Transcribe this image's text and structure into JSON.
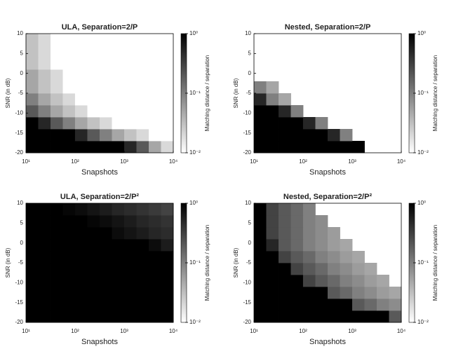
{
  "chart_data": [
    {
      "type": "heatmap",
      "title": "ULA, Separation=2/P",
      "xlabel": "Snapshots",
      "ylabel": "SNR (in dB)",
      "colorbar_label": "Matching distance / separation",
      "x": [
        13.3,
        23.7,
        42.2,
        75,
        133,
        237,
        422,
        750,
        1334,
        2371,
        4217,
        7499
      ],
      "y": [
        -18.5,
        -15.5,
        -12.5,
        -9.5,
        -6.5,
        -3.5,
        -0.5,
        2.5,
        5.5,
        8.5
      ],
      "z": [
        [
          1,
          1,
          1,
          1,
          1,
          1,
          1,
          1,
          0.5,
          0.2,
          0.05,
          0.02
        ],
        [
          1,
          1,
          1,
          1,
          0.5,
          0.2,
          0.1,
          0.05,
          0.03,
          0.02,
          0.01,
          0.01
        ],
        [
          1,
          0.5,
          0.2,
          0.1,
          0.05,
          0.03,
          0.02,
          0.01,
          0.01,
          0.01,
          0.01,
          0.01
        ],
        [
          0.2,
          0.1,
          0.05,
          0.03,
          0.02,
          0.01,
          0.01,
          0.01,
          0.01,
          0.01,
          0.01,
          0.01
        ],
        [
          0.1,
          0.05,
          0.03,
          0.02,
          0.01,
          0.01,
          0.01,
          0.01,
          0.01,
          0.01,
          0.01,
          0.01
        ],
        [
          0.05,
          0.03,
          0.02,
          0.01,
          0.01,
          0.01,
          0.01,
          0.01,
          0.01,
          0.01,
          0.01,
          0.01
        ],
        [
          0.05,
          0.03,
          0.02,
          0.01,
          0.01,
          0.01,
          0.01,
          0.01,
          0.01,
          0.01,
          0.01,
          0.01
        ],
        [
          0.03,
          0.02,
          0.01,
          0.01,
          0.01,
          0.01,
          0.01,
          0.01,
          0.01,
          0.01,
          0.01,
          0.01
        ],
        [
          0.03,
          0.02,
          0.01,
          0.01,
          0.01,
          0.01,
          0.01,
          0.01,
          0.01,
          0.01,
          0.01,
          0.01
        ],
        [
          0.03,
          0.02,
          0.01,
          0.01,
          0.01,
          0.01,
          0.01,
          0.01,
          0.01,
          0.01,
          0.01,
          0.01
        ]
      ],
      "xlim": [
        10,
        10000
      ],
      "ylim": [
        -20,
        10
      ],
      "x_log": true,
      "xticks": [
        {
          "value": 10,
          "label": "10¹"
        },
        {
          "value": 100,
          "label": "10²"
        },
        {
          "value": 1000,
          "label": "10³"
        },
        {
          "value": 10000,
          "label": "10⁴"
        }
      ],
      "yticks": [
        -20,
        -15,
        -10,
        -5,
        0,
        5,
        10
      ],
      "clim": [
        0.01,
        1
      ],
      "color_log": true,
      "cticks": [
        {
          "value": 0.01,
          "label": "10⁻²"
        },
        {
          "value": 0.1,
          "label": "10⁻¹"
        },
        {
          "value": 1,
          "label": "10⁰"
        }
      ]
    },
    {
      "type": "heatmap",
      "title": "Nested, Separation=2/P",
      "xlabel": "Snapshots",
      "ylabel": "SNR (in dB)",
      "colorbar_label": "Matching distance / separation",
      "x": [
        13.3,
        23.7,
        42.2,
        75,
        133,
        237,
        422,
        750,
        1334,
        2371,
        4217,
        7499
      ],
      "y": [
        -18.5,
        -15.5,
        -12.5,
        -9.5,
        -6.5,
        -3.5,
        -0.5,
        2.5,
        5.5,
        8.5
      ],
      "z": [
        [
          1,
          1,
          1,
          1,
          1,
          1,
          1,
          1,
          1,
          null,
          null,
          null
        ],
        [
          1,
          1,
          1,
          1,
          1,
          1,
          0.5,
          0.1,
          null,
          null,
          null,
          null
        ],
        [
          1,
          1,
          1,
          1,
          0.5,
          0.1,
          null,
          null,
          null,
          null,
          null,
          null
        ],
        [
          1,
          1,
          0.5,
          0.1,
          null,
          null,
          null,
          null,
          null,
          null,
          null,
          null
        ],
        [
          0.5,
          0.1,
          0.05,
          null,
          null,
          null,
          null,
          null,
          null,
          null,
          null,
          null
        ],
        [
          0.1,
          0.05,
          null,
          null,
          null,
          null,
          null,
          null,
          null,
          null,
          null,
          null
        ],
        [
          null,
          null,
          null,
          null,
          null,
          null,
          null,
          null,
          null,
          null,
          null,
          null
        ],
        [
          null,
          null,
          null,
          null,
          null,
          null,
          null,
          null,
          null,
          null,
          null,
          null
        ],
        [
          null,
          null,
          null,
          null,
          null,
          null,
          null,
          null,
          null,
          null,
          null,
          null
        ],
        [
          null,
          null,
          null,
          null,
          null,
          null,
          null,
          null,
          null,
          null,
          null,
          null
        ]
      ],
      "xlim": [
        10,
        10000
      ],
      "ylim": [
        -20,
        10
      ],
      "x_log": true,
      "xticks": [
        {
          "value": 10,
          "label": "10¹"
        },
        {
          "value": 100,
          "label": "10²"
        },
        {
          "value": 1000,
          "label": "10³"
        },
        {
          "value": 10000,
          "label": "10⁴"
        }
      ],
      "yticks": [
        -20,
        -15,
        -10,
        -5,
        0,
        5,
        10
      ],
      "clim": [
        0.01,
        1
      ],
      "color_log": true,
      "cticks": [
        {
          "value": 0.01,
          "label": "10⁻²"
        },
        {
          "value": 0.1,
          "label": "10⁻¹"
        },
        {
          "value": 1,
          "label": "10⁰"
        }
      ]
    },
    {
      "type": "heatmap",
      "title": "ULA, Separation=2/P²",
      "xlabel": "Snapshots",
      "ylabel": "SNR (in dB)",
      "colorbar_label": "Matching distance / separation",
      "x": [
        13.3,
        23.7,
        42.2,
        75,
        133,
        237,
        422,
        750,
        1334,
        2371,
        4217,
        7499
      ],
      "y": [
        -18.5,
        -15.5,
        -12.5,
        -9.5,
        -6.5,
        -3.5,
        -0.5,
        2.5,
        5.5,
        8.5
      ],
      "z": [
        [
          1,
          1,
          1,
          1,
          1,
          1,
          1,
          1,
          1,
          1,
          1,
          1
        ],
        [
          1,
          1,
          1,
          1,
          1,
          1,
          1,
          1,
          1,
          1,
          1,
          1
        ],
        [
          1,
          1,
          1,
          1,
          1,
          1,
          1,
          1,
          1,
          1,
          1,
          1
        ],
        [
          1,
          1,
          1,
          1,
          1,
          1,
          1,
          1,
          1,
          1,
          1,
          1
        ],
        [
          1,
          1,
          1,
          1,
          1,
          1,
          1,
          1,
          1,
          1,
          1,
          1
        ],
        [
          1,
          1,
          1,
          1,
          1,
          1,
          1,
          1,
          1,
          1,
          1,
          1
        ],
        [
          1,
          1,
          1,
          1,
          1,
          1,
          1,
          1,
          1,
          1,
          0.8,
          0.6
        ],
        [
          1,
          1,
          1,
          1,
          1,
          1,
          1,
          0.8,
          0.7,
          0.6,
          0.5,
          0.45
        ],
        [
          1,
          1,
          1,
          1,
          1,
          0.9,
          0.8,
          0.7,
          0.6,
          0.5,
          0.45,
          0.4
        ],
        [
          1,
          1,
          1,
          0.9,
          0.8,
          0.7,
          0.6,
          0.5,
          0.45,
          0.4,
          0.35,
          0.3
        ]
      ],
      "xlim": [
        10,
        10000
      ],
      "ylim": [
        -20,
        10
      ],
      "x_log": true,
      "xticks": [
        {
          "value": 10,
          "label": "10¹"
        },
        {
          "value": 100,
          "label": "10²"
        },
        {
          "value": 1000,
          "label": "10³"
        },
        {
          "value": 10000,
          "label": "10⁴"
        }
      ],
      "yticks": [
        -20,
        -15,
        -10,
        -5,
        0,
        5,
        10
      ],
      "clim": [
        0.01,
        1
      ],
      "color_log": true,
      "cticks": [
        {
          "value": 0.01,
          "label": "10⁻²"
        },
        {
          "value": 0.1,
          "label": "10⁻¹"
        },
        {
          "value": 1,
          "label": "10⁰"
        }
      ]
    },
    {
      "type": "heatmap",
      "title": "Nested, Separation=2/P²",
      "xlabel": "Snapshots",
      "ylabel": "SNR (in dB)",
      "colorbar_label": "Matching distance / separation",
      "x": [
        13.3,
        23.7,
        42.2,
        75,
        133,
        237,
        422,
        750,
        1334,
        2371,
        4217,
        7499
      ],
      "y": [
        -18.5,
        -15.5,
        -12.5,
        -9.5,
        -6.5,
        -3.5,
        -0.5,
        2.5,
        5.5,
        8.5
      ],
      "z": [
        [
          1,
          1,
          1,
          1,
          1,
          1,
          1,
          1,
          1,
          1,
          1,
          0.2
        ],
        [
          1,
          1,
          1,
          1,
          1,
          1,
          1,
          1,
          0.2,
          0.15,
          0.1,
          0.08
        ],
        [
          1,
          1,
          1,
          1,
          1,
          1,
          0.2,
          0.15,
          0.1,
          0.08,
          0.06,
          0.05
        ],
        [
          1,
          1,
          1,
          1,
          0.3,
          0.2,
          0.15,
          0.1,
          0.08,
          0.06,
          0.05,
          null
        ],
        [
          1,
          1,
          1,
          0.3,
          0.2,
          0.15,
          0.1,
          0.08,
          0.06,
          0.05,
          null,
          null
        ],
        [
          1,
          1,
          0.3,
          0.2,
          0.15,
          0.1,
          0.08,
          0.06,
          0.05,
          null,
          null,
          null
        ],
        [
          1,
          0.5,
          0.2,
          0.15,
          0.1,
          0.08,
          0.06,
          0.05,
          null,
          null,
          null,
          null
        ],
        [
          1,
          0.3,
          0.2,
          0.15,
          0.1,
          0.08,
          0.06,
          null,
          null,
          null,
          null,
          null
        ],
        [
          1,
          0.3,
          0.2,
          0.15,
          0.1,
          0.08,
          null,
          null,
          null,
          null,
          null,
          null
        ],
        [
          1,
          0.3,
          0.2,
          0.15,
          0.1,
          null,
          null,
          null,
          null,
          null,
          null,
          null
        ]
      ],
      "xlim": [
        10,
        10000
      ],
      "ylim": [
        -20,
        10
      ],
      "x_log": true,
      "xticks": [
        {
          "value": 10,
          "label": "10¹"
        },
        {
          "value": 100,
          "label": "10²"
        },
        {
          "value": 1000,
          "label": "10³"
        },
        {
          "value": 10000,
          "label": "10⁴"
        }
      ],
      "yticks": [
        -20,
        -15,
        -10,
        -5,
        0,
        5,
        10
      ],
      "clim": [
        0.01,
        1
      ],
      "color_log": true,
      "cticks": [
        {
          "value": 0.01,
          "label": "10⁻²"
        },
        {
          "value": 0.1,
          "label": "10⁻¹"
        },
        {
          "value": 1,
          "label": "10⁰"
        }
      ]
    }
  ]
}
